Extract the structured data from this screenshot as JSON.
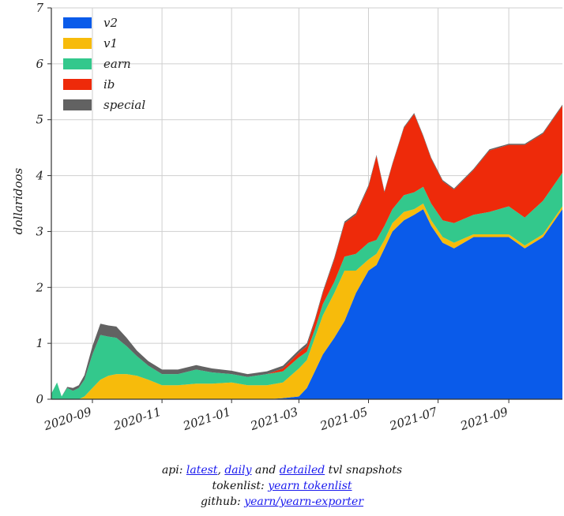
{
  "chart_data": {
    "type": "area",
    "stacked": true,
    "title": "",
    "xlabel": "",
    "ylabel": "dollaridoos",
    "ylim": [
      0,
      7
    ],
    "yticks": [
      "0",
      "1",
      "2",
      "3",
      "4",
      "5",
      "6",
      "7"
    ],
    "xticks": [
      "2020-09",
      "2020-11",
      "2021-01",
      "2021-03",
      "2021-05",
      "2021-07",
      "2021-09"
    ],
    "xticks_dates": [
      "2020-09-01",
      "2020-11-01",
      "2021-01-01",
      "2021-03-01",
      "2021-05-01",
      "2021-07-01",
      "2021-09-01"
    ],
    "xlim": [
      "2020-07-27",
      "2021-10-18"
    ],
    "grid": true,
    "legend_position": "top-left",
    "x": [
      "2020-07-27",
      "2020-08-01",
      "2020-08-05",
      "2020-08-10",
      "2020-08-15",
      "2020-08-20",
      "2020-08-25",
      "2020-09-01",
      "2020-09-08",
      "2020-09-15",
      "2020-09-22",
      "2020-10-01",
      "2020-10-10",
      "2020-10-20",
      "2020-11-01",
      "2020-11-15",
      "2020-12-01",
      "2020-12-15",
      "2021-01-01",
      "2021-01-15",
      "2021-02-01",
      "2021-02-15",
      "2021-03-01",
      "2021-03-08",
      "2021-03-15",
      "2021-03-22",
      "2021-04-01",
      "2021-04-10",
      "2021-04-20",
      "2021-05-01",
      "2021-05-08",
      "2021-05-15",
      "2021-05-22",
      "2021-06-01",
      "2021-06-10",
      "2021-06-18",
      "2021-06-25",
      "2021-07-05",
      "2021-07-15",
      "2021-08-01",
      "2021-08-15",
      "2021-09-01",
      "2021-09-15",
      "2021-10-01",
      "2021-10-18"
    ],
    "series": [
      {
        "name": "v2",
        "color": "#0a5bea",
        "values": [
          0,
          0,
          0,
          0,
          0,
          0,
          0,
          0,
          0,
          0,
          0,
          0,
          0,
          0,
          0,
          0,
          0,
          0,
          0,
          0,
          0,
          0.02,
          0.05,
          0.2,
          0.5,
          0.8,
          1.1,
          1.4,
          1.9,
          2.3,
          2.4,
          2.7,
          3.0,
          3.2,
          3.3,
          3.4,
          3.1,
          2.8,
          2.7,
          2.9,
          2.9,
          2.9,
          2.7,
          2.9,
          3.4
        ]
      },
      {
        "name": "v1",
        "color": "#f7bb0b",
        "values": [
          0,
          0,
          0,
          0,
          0,
          0,
          0.05,
          0.2,
          0.35,
          0.42,
          0.45,
          0.45,
          0.42,
          0.35,
          0.25,
          0.25,
          0.28,
          0.28,
          0.3,
          0.25,
          0.25,
          0.28,
          0.5,
          0.5,
          0.6,
          0.7,
          0.8,
          0.9,
          0.4,
          0.2,
          0.2,
          0.15,
          0.15,
          0.15,
          0.1,
          0.1,
          0.1,
          0.1,
          0.1,
          0.05,
          0.05,
          0.05,
          0.05,
          0.05,
          0.05
        ]
      },
      {
        "name": "earn",
        "color": "#33c88c",
        "values": [
          0.1,
          0.3,
          0.05,
          0.2,
          0.15,
          0.2,
          0.3,
          0.6,
          0.8,
          0.7,
          0.65,
          0.5,
          0.35,
          0.25,
          0.2,
          0.2,
          0.25,
          0.2,
          0.15,
          0.15,
          0.2,
          0.2,
          0.2,
          0.15,
          0.15,
          0.2,
          0.2,
          0.25,
          0.3,
          0.3,
          0.25,
          0.25,
          0.25,
          0.3,
          0.3,
          0.3,
          0.3,
          0.3,
          0.35,
          0.35,
          0.4,
          0.5,
          0.5,
          0.6,
          0.6
        ]
      },
      {
        "name": "ib",
        "color": "#ee2a0a",
        "values": [
          0,
          0,
          0,
          0,
          0,
          0,
          0,
          0,
          0,
          0,
          0,
          0,
          0,
          0,
          0,
          0,
          0,
          0,
          0,
          0,
          0,
          0.05,
          0.08,
          0.1,
          0.15,
          0.2,
          0.4,
          0.6,
          0.7,
          1.0,
          1.5,
          0.6,
          0.8,
          1.2,
          1.4,
          0.9,
          0.8,
          0.7,
          0.6,
          0.8,
          1.1,
          1.1,
          1.3,
          1.2,
          1.2
        ]
      },
      {
        "name": "special",
        "color": "#626262",
        "values": [
          0,
          0,
          0,
          0.02,
          0.05,
          0.05,
          0.08,
          0.15,
          0.2,
          0.2,
          0.2,
          0.15,
          0.1,
          0.08,
          0.08,
          0.08,
          0.08,
          0.07,
          0.06,
          0.05,
          0.05,
          0.05,
          0.05,
          0.05,
          0.03,
          0.03,
          0.03,
          0.03,
          0.03,
          0.03,
          0.02,
          0.02,
          0.02,
          0.02,
          0.02,
          0.02,
          0.02,
          0.02,
          0.02,
          0.02,
          0.02,
          0.02,
          0.02,
          0.02,
          0.02
        ]
      }
    ]
  },
  "footer": {
    "api_prefix": "api: ",
    "api_latest": "latest",
    "api_sep1": ", ",
    "api_daily": "daily",
    "api_and": " and ",
    "api_detailed": "detailed",
    "api_suffix": " tvl snapshots",
    "tokenlist_prefix": "tokenlist: ",
    "tokenlist_link": "yearn tokenlist",
    "github_prefix": "github: ",
    "github_link": "yearn/yearn-exporter"
  }
}
